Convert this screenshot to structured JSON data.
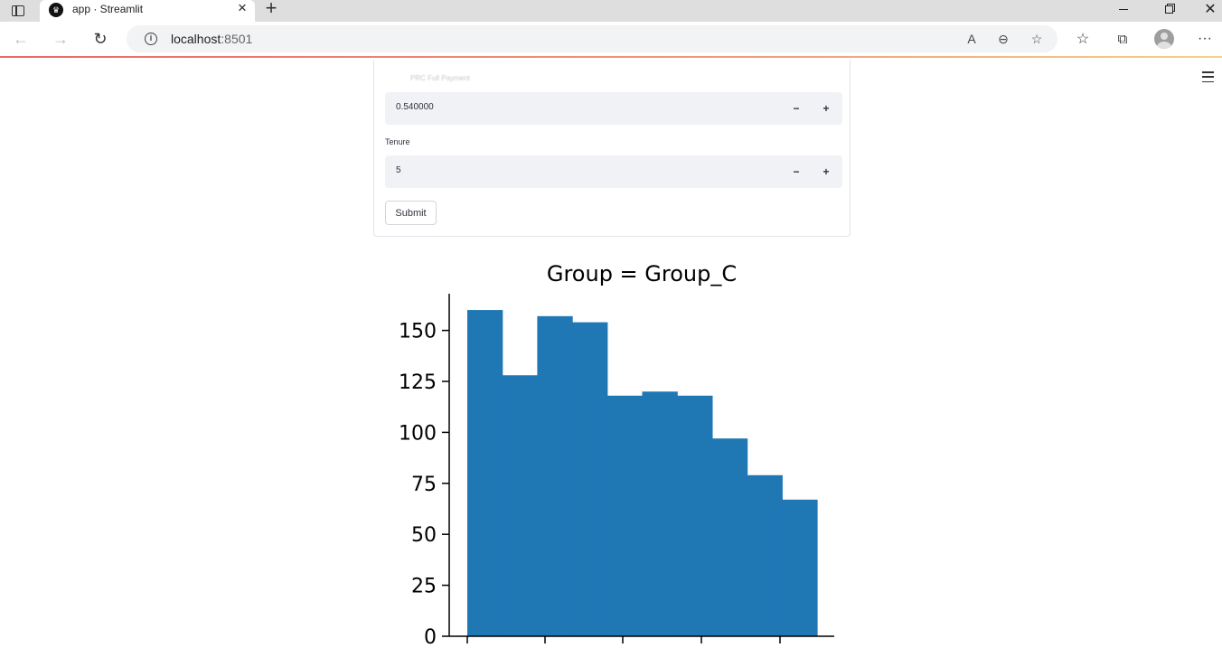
{
  "browser": {
    "tab_title": "app · Streamlit",
    "url_host": "localhost",
    "url_port": ":8501"
  },
  "form": {
    "faded_label": "PRC Full Payment",
    "field1_value": "0.540000",
    "field2_label": "Tenure",
    "field2_value": "5",
    "step_minus": "−",
    "step_plus": "+",
    "submit_label": "Submit"
  },
  "chart_data": {
    "type": "bar",
    "title": "Group = Group_C",
    "xlabel": "",
    "ylabel": "",
    "ylim": [
      0,
      168
    ],
    "yticks": [
      0,
      25,
      50,
      75,
      100,
      125,
      150
    ],
    "values": [
      160,
      128,
      157,
      154,
      118,
      120,
      118,
      97,
      79,
      67
    ],
    "bar_color": "#1f77b4"
  }
}
